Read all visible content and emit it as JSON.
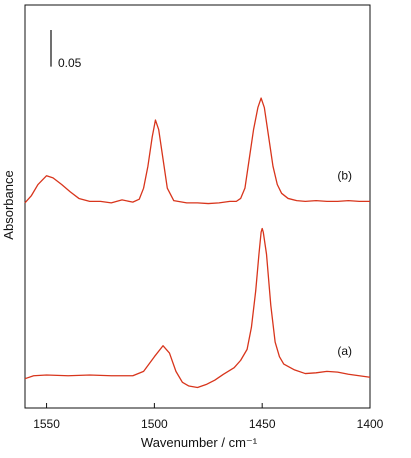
{
  "chart_data": {
    "type": "line",
    "title": "",
    "xlabel": "Wavenumber / cm⁻¹",
    "ylabel": "Absorbance",
    "xlim": [
      1560,
      1400
    ],
    "x_reversed": true,
    "xticks": [
      1550,
      1500,
      1450,
      1400
    ],
    "ylim": [
      0,
      0.55
    ],
    "y_ticks_shown": false,
    "grid": false,
    "legend": "none",
    "scale_bar": {
      "label": "0.05",
      "value": 0.05
    },
    "series_color": "#d8351c",
    "series": [
      {
        "label": "(a)",
        "offset": 0.04,
        "points": [
          [
            1560,
            0.0
          ],
          [
            1556,
            0.004
          ],
          [
            1550,
            0.005
          ],
          [
            1540,
            0.004
          ],
          [
            1530,
            0.005
          ],
          [
            1520,
            0.004
          ],
          [
            1510,
            0.004
          ],
          [
            1505,
            0.01
          ],
          [
            1500,
            0.03
          ],
          [
            1496,
            0.045
          ],
          [
            1493,
            0.035
          ],
          [
            1490,
            0.01
          ],
          [
            1487,
            -0.005
          ],
          [
            1484,
            -0.01
          ],
          [
            1480,
            -0.012
          ],
          [
            1476,
            -0.008
          ],
          [
            1472,
            -0.002
          ],
          [
            1468,
            0.006
          ],
          [
            1463,
            0.015
          ],
          [
            1460,
            0.025
          ],
          [
            1457,
            0.04
          ],
          [
            1455,
            0.07
          ],
          [
            1453,
            0.12
          ],
          [
            1451.5,
            0.17
          ],
          [
            1450.5,
            0.2
          ],
          [
            1450,
            0.205
          ],
          [
            1449.5,
            0.2
          ],
          [
            1448,
            0.17
          ],
          [
            1446,
            0.1
          ],
          [
            1444,
            0.05
          ],
          [
            1442,
            0.03
          ],
          [
            1440,
            0.02
          ],
          [
            1435,
            0.012
          ],
          [
            1430,
            0.007
          ],
          [
            1425,
            0.008
          ],
          [
            1420,
            0.01
          ],
          [
            1415,
            0.009
          ],
          [
            1410,
            0.006
          ],
          [
            1405,
            0.004
          ],
          [
            1400,
            0.002
          ]
        ]
      },
      {
        "label": "(b)",
        "offset": 0.28,
        "points": [
          [
            1560,
            0.0
          ],
          [
            1557,
            0.01
          ],
          [
            1554,
            0.025
          ],
          [
            1550,
            0.037
          ],
          [
            1547,
            0.034
          ],
          [
            1543,
            0.025
          ],
          [
            1539,
            0.015
          ],
          [
            1535,
            0.006
          ],
          [
            1530,
            0.002
          ],
          [
            1525,
            0.002
          ],
          [
            1520,
            0.0
          ],
          [
            1515,
            0.004
          ],
          [
            1510,
            0.001
          ],
          [
            1507,
            0.005
          ],
          [
            1505,
            0.02
          ],
          [
            1503,
            0.05
          ],
          [
            1501,
            0.09
          ],
          [
            1499.5,
            0.113
          ],
          [
            1498,
            0.1
          ],
          [
            1496,
            0.06
          ],
          [
            1494,
            0.02
          ],
          [
            1491,
            0.003
          ],
          [
            1485,
            0.0
          ],
          [
            1480,
            0.0
          ],
          [
            1475,
            -0.001
          ],
          [
            1470,
            0.0
          ],
          [
            1465,
            0.002
          ],
          [
            1462,
            0.002
          ],
          [
            1460,
            0.006
          ],
          [
            1458,
            0.02
          ],
          [
            1456,
            0.06
          ],
          [
            1454,
            0.1
          ],
          [
            1452,
            0.13
          ],
          [
            1450.5,
            0.143
          ],
          [
            1449,
            0.13
          ],
          [
            1447,
            0.09
          ],
          [
            1445,
            0.05
          ],
          [
            1443,
            0.025
          ],
          [
            1441,
            0.013
          ],
          [
            1438,
            0.006
          ],
          [
            1434,
            0.003
          ],
          [
            1430,
            0.002
          ],
          [
            1425,
            0.003
          ],
          [
            1420,
            0.002
          ],
          [
            1415,
            0.002
          ],
          [
            1410,
            0.003
          ],
          [
            1405,
            0.002
          ],
          [
            1400,
            0.002
          ]
        ]
      }
    ]
  }
}
